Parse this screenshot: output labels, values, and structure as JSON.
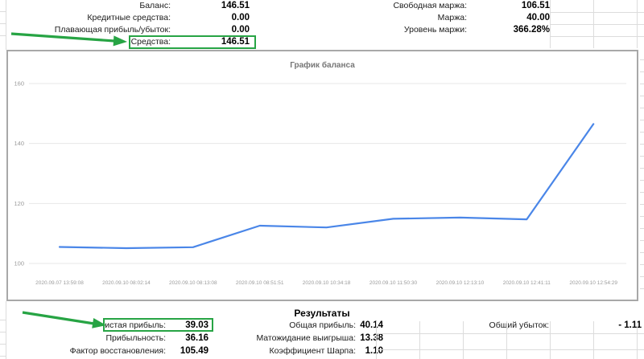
{
  "account_summary": {
    "left": [
      {
        "label": "Баланс:",
        "value": "146.51"
      },
      {
        "label": "Кредитные средства:",
        "value": "0.00"
      },
      {
        "label": "Плавающая прибыль/убыток:",
        "value": "0.00"
      },
      {
        "label": "Средства:",
        "value": "146.51"
      }
    ],
    "right": [
      {
        "label": "Свободная маржа:",
        "value": "106.51"
      },
      {
        "label": "Маржа:",
        "value": "40.00"
      },
      {
        "label": "Уровень маржи:",
        "value": "366.28%"
      }
    ]
  },
  "chart_data": {
    "type": "line",
    "title": "График баланса",
    "x": [
      "2020.09.07 13:59:08",
      "2020.09.10 08:02:14",
      "2020.09.10 08:13:08",
      "2020.09.10 08:51:51",
      "2020.09.10 10:34:18",
      "2020.09.10 11:50:30",
      "2020.09.10 12:13:10",
      "2020.09.10 12:41:11",
      "2020.09.10 12:54:29"
    ],
    "values": [
      105.5,
      105.1,
      105.4,
      112.6,
      112.0,
      114.9,
      115.3,
      114.7,
      146.51
    ],
    "yticks": [
      100,
      120,
      140,
      160
    ],
    "ylim": [
      95,
      168
    ],
    "xlabel": "",
    "ylabel": "",
    "grid": true,
    "legend": false,
    "line_color": "#4a86e8"
  },
  "results": {
    "title": "Результаты",
    "col1": [
      {
        "label": "Чистая прибыль:",
        "value": "39.03"
      },
      {
        "label": "Прибыльность:",
        "value": "36.16"
      },
      {
        "label": "Фактор восстановления:",
        "value": "105.49"
      }
    ],
    "col2": [
      {
        "label": "Общая прибыль:",
        "value": "40.14"
      },
      {
        "label": "Матожидание выигрыша:",
        "value": "13.38"
      },
      {
        "label": "Коэффициент Шарпа:",
        "value": "1.10"
      }
    ],
    "col3": [
      {
        "label": "Общий убыток:",
        "value": "- 1.11"
      }
    ]
  },
  "annotations": {
    "highlight_color": "#27a444",
    "highlighted_fields": [
      "Средства",
      "Чистая прибыль"
    ]
  }
}
